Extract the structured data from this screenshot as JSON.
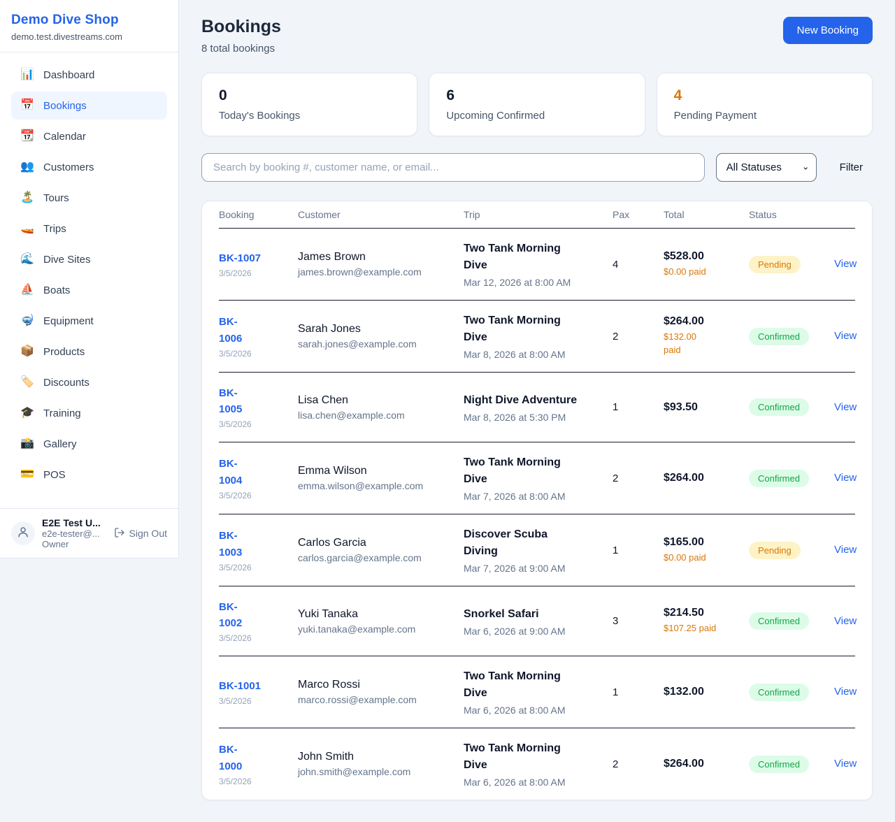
{
  "colors": {
    "accent": "#2563eb",
    "page_bg": "#f1f5f9",
    "pending_text": "#d97706",
    "pending_bg": "#fef3c7",
    "confirmed_text": "#16a34a",
    "confirmed_bg": "#dcfce7",
    "paid_amount": "#d97706"
  },
  "sidebar": {
    "brand": {
      "name": "Demo Dive Shop",
      "domain": "demo.test.divestreams.com"
    },
    "items": [
      {
        "icon": "📊",
        "label": "Dashboard",
        "active": false
      },
      {
        "icon": "📅",
        "label": "Bookings",
        "active": true
      },
      {
        "icon": "📆",
        "label": "Calendar",
        "active": false
      },
      {
        "icon": "👥",
        "label": "Customers",
        "active": false
      },
      {
        "icon": "🏝️",
        "label": "Tours",
        "active": false
      },
      {
        "icon": "🚤",
        "label": "Trips",
        "active": false
      },
      {
        "icon": "🌊",
        "label": "Dive Sites",
        "active": false
      },
      {
        "icon": "⛵",
        "label": "Boats",
        "active": false
      },
      {
        "icon": "🤿",
        "label": "Equipment",
        "active": false
      },
      {
        "icon": "📦",
        "label": "Products",
        "active": false
      },
      {
        "icon": "🏷️",
        "label": "Discounts",
        "active": false
      },
      {
        "icon": "🎓",
        "label": "Training",
        "active": false
      },
      {
        "icon": "📸",
        "label": "Gallery",
        "active": false
      },
      {
        "icon": "💳",
        "label": "POS",
        "active": false
      }
    ],
    "user": {
      "name": "E2E Test U...",
      "email": "e2e-tester@...",
      "role": "Owner",
      "sign_out": "Sign Out"
    }
  },
  "header": {
    "title": "Bookings",
    "subtitle": "8 total bookings",
    "new_booking": "New Booking"
  },
  "stats": [
    {
      "value": "0",
      "label": "Today's Bookings",
      "color": "#0f172a"
    },
    {
      "value": "6",
      "label": "Upcoming Confirmed",
      "color": "#0f172a"
    },
    {
      "value": "4",
      "label": "Pending Payment",
      "color": "#d97706"
    }
  ],
  "filters": {
    "search_placeholder": "Search by booking #, customer name, or email...",
    "status_selected": "All Statuses",
    "filter_label": "Filter"
  },
  "table": {
    "columns": [
      "Booking",
      "Customer",
      "Trip",
      "Pax",
      "Total",
      "Status"
    ],
    "view_label": "View",
    "rows": [
      {
        "id": "BK-1007",
        "date": "3/5/2026",
        "customer": "James Brown",
        "email": "james.brown@example.com",
        "trip": "Two Tank Morning\nDive",
        "trip_date": "Mar 12, 2026 at 8:00 AM",
        "pax": "4",
        "total": "$528.00",
        "paid": "$0.00 paid",
        "status": "Pending"
      },
      {
        "id": "BK-\n1006",
        "date": "3/5/2026",
        "customer": "Sarah Jones",
        "email": "sarah.jones@example.com",
        "trip": "Two Tank Morning\nDive",
        "trip_date": "Mar 8, 2026 at 8:00 AM",
        "pax": "2",
        "total": "$264.00",
        "paid": "$132.00\npaid",
        "status": "Confirmed"
      },
      {
        "id": "BK-\n1005",
        "date": "3/5/2026",
        "customer": "Lisa Chen",
        "email": "lisa.chen@example.com",
        "trip": "Night Dive Adventure",
        "trip_date": "Mar 8, 2026 at 5:30 PM",
        "pax": "1",
        "total": "$93.50",
        "paid": null,
        "status": "Confirmed"
      },
      {
        "id": "BK-\n1004",
        "date": "3/5/2026",
        "customer": "Emma Wilson",
        "email": "emma.wilson@example.com",
        "trip": "Two Tank Morning\nDive",
        "trip_date": "Mar 7, 2026 at 8:00 AM",
        "pax": "2",
        "total": "$264.00",
        "paid": null,
        "status": "Confirmed"
      },
      {
        "id": "BK-\n1003",
        "date": "3/5/2026",
        "customer": "Carlos Garcia",
        "email": "carlos.garcia@example.com",
        "trip": "Discover Scuba\nDiving",
        "trip_date": "Mar 7, 2026 at 9:00 AM",
        "pax": "1",
        "total": "$165.00",
        "paid": "$0.00 paid",
        "status": "Pending"
      },
      {
        "id": "BK-\n1002",
        "date": "3/5/2026",
        "customer": "Yuki Tanaka",
        "email": "yuki.tanaka@example.com",
        "trip": "Snorkel Safari",
        "trip_date": "Mar 6, 2026 at 9:00 AM",
        "pax": "3",
        "total": "$214.50",
        "paid": "$107.25 paid",
        "status": "Confirmed"
      },
      {
        "id": "BK-1001",
        "date": "3/5/2026",
        "customer": "Marco Rossi",
        "email": "marco.rossi@example.com",
        "trip": "Two Tank Morning\nDive",
        "trip_date": "Mar 6, 2026 at 8:00 AM",
        "pax": "1",
        "total": "$132.00",
        "paid": null,
        "status": "Confirmed"
      },
      {
        "id": "BK-\n1000",
        "date": "3/5/2026",
        "customer": "John Smith",
        "email": "john.smith@example.com",
        "trip": "Two Tank Morning\nDive",
        "trip_date": "Mar 6, 2026 at 8:00 AM",
        "pax": "2",
        "total": "$264.00",
        "paid": null,
        "status": "Confirmed"
      }
    ]
  }
}
